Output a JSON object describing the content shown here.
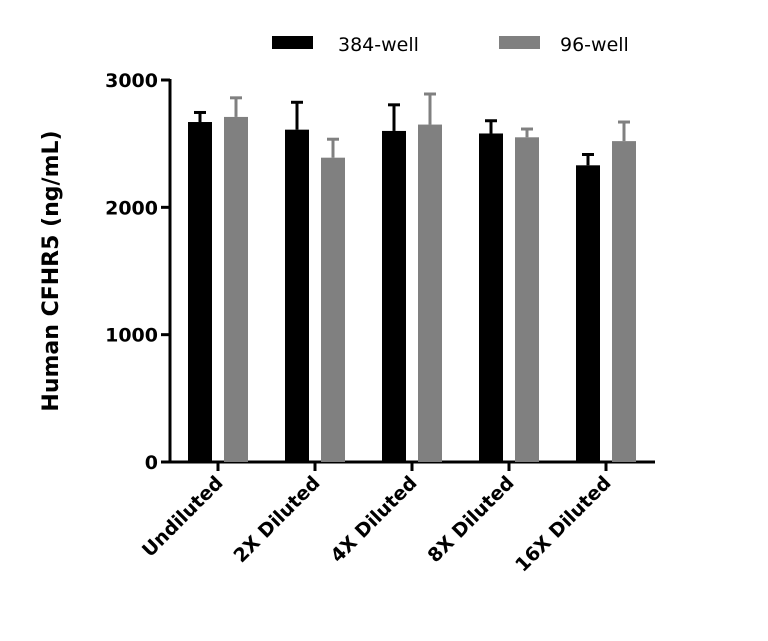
{
  "chart_data": {
    "type": "bar",
    "title": "",
    "xlabel": "",
    "ylabel": "Human  CFHR5 (ng/mL)",
    "ylim": [
      0,
      3000
    ],
    "yticks": [
      0,
      1000,
      2000,
      3000
    ],
    "categories": [
      "Undiluted",
      "2X Diluted",
      "4X Diluted",
      "8X Diluted",
      "16X Diluted"
    ],
    "series": [
      {
        "name": "384-well",
        "color": "#000000",
        "values": [
          2670,
          2610,
          2600,
          2580,
          2330
        ],
        "error": [
          75,
          215,
          205,
          100,
          85
        ]
      },
      {
        "name": "96-well",
        "color": "#808080",
        "values": [
          2710,
          2390,
          2650,
          2550,
          2520
        ],
        "error": [
          150,
          145,
          240,
          65,
          150
        ]
      }
    ],
    "legend": "top",
    "grid": false
  }
}
